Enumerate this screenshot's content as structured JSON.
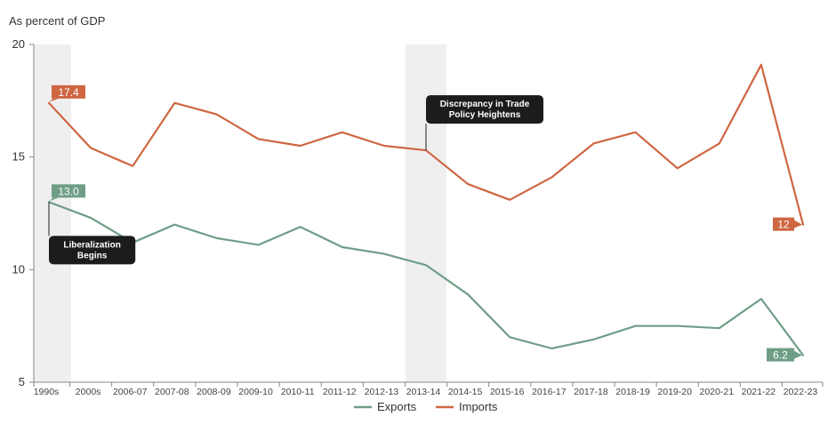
{
  "chart_data": {
    "type": "line",
    "ylabel": "As percent of GDP",
    "xlabel": "",
    "ylim": [
      5,
      20
    ],
    "yticks": [
      5,
      10,
      15,
      20
    ],
    "categories": [
      "1990s",
      "2000s",
      "2006-07",
      "2007-08",
      "2008-09",
      "2009-10",
      "2010-11",
      "2011-12",
      "2012-13",
      "2013-14",
      "2014-15",
      "2015-16",
      "2016-17",
      "2017-18",
      "2018-19",
      "2019-20",
      "2020-21",
      "2021-22",
      "2022-23"
    ],
    "series": [
      {
        "name": "Exports",
        "color": "#6f9e86",
        "values": [
          13.0,
          12.3,
          11.2,
          12.0,
          11.4,
          11.1,
          11.9,
          11.0,
          10.7,
          10.2,
          8.9,
          7.0,
          6.5,
          6.9,
          7.5,
          7.5,
          7.4,
          8.7,
          6.2
        ]
      },
      {
        "name": "Imports",
        "color": "#cf6642",
        "values": [
          17.4,
          15.4,
          14.6,
          17.4,
          16.9,
          15.8,
          15.5,
          16.1,
          15.5,
          15.3,
          13.8,
          13.1,
          14.1,
          15.6,
          16.1,
          14.5,
          15.6,
          19.1,
          12.0
        ]
      }
    ],
    "value_labels": [
      {
        "series": "Imports",
        "index": 0,
        "text": "17.4"
      },
      {
        "series": "Exports",
        "index": 0,
        "text": "13.0"
      },
      {
        "series": "Imports",
        "index": 18,
        "text": "12"
      },
      {
        "series": "Exports",
        "index": 18,
        "text": "6.2"
      }
    ],
    "shaded_periods": [
      {
        "from": "1990s",
        "to": "1990s"
      },
      {
        "from": "2013-14",
        "to": "2013-14"
      }
    ],
    "annotations": [
      {
        "text_lines": [
          "Liberalization",
          "Begins"
        ],
        "category": "1990s",
        "series": "Exports"
      },
      {
        "text_lines": [
          "Discrepancy in Trade",
          "Policy Heightens"
        ],
        "category": "2013-14",
        "series": "Imports"
      }
    ],
    "legend": {
      "position": "bottom-center",
      "entries": [
        "Exports",
        "Imports"
      ]
    }
  }
}
